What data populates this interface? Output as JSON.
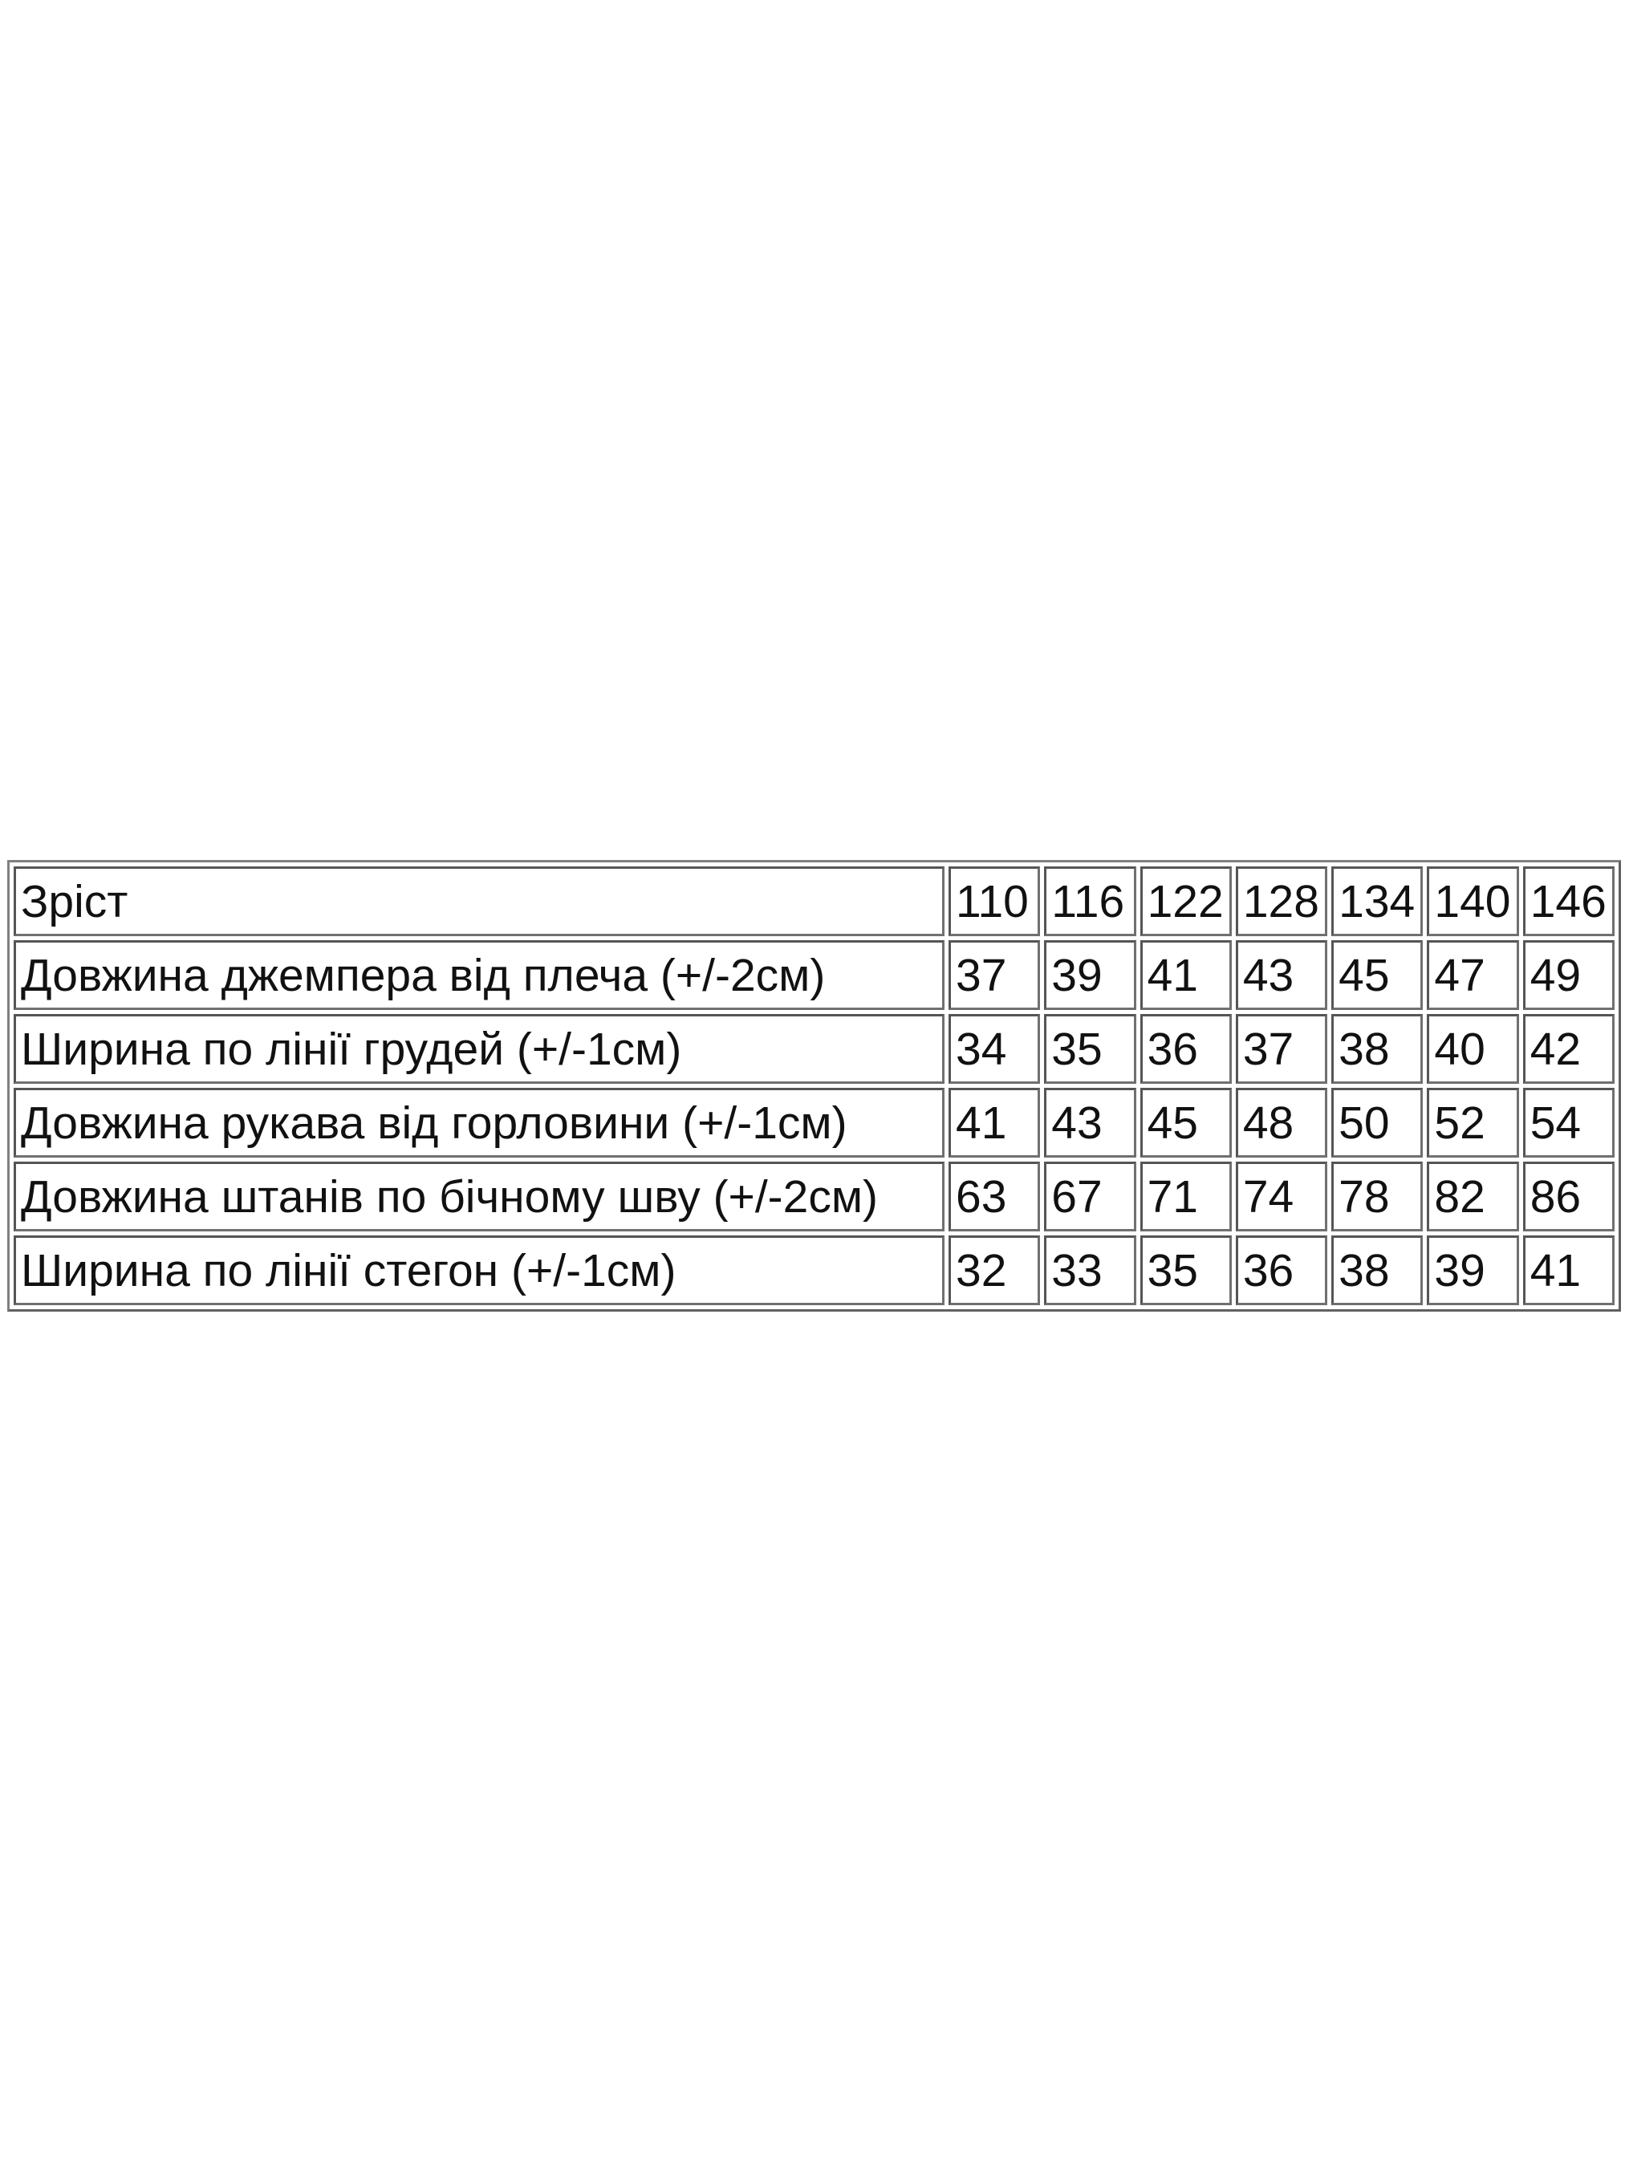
{
  "table": {
    "header": {
      "label": "Зріст",
      "sizes": [
        "110",
        "116",
        "122",
        "128",
        "134",
        "140",
        "146"
      ]
    },
    "rows": [
      {
        "label": "Довжина джемпера від плеча (+/-2см)",
        "values": [
          "37",
          "39",
          "41",
          "43",
          "45",
          "47",
          "49"
        ]
      },
      {
        "label": "Ширина по лінії грудей (+/-1см)",
        "values": [
          "34",
          "35",
          "36",
          "37",
          "38",
          "40",
          "42"
        ]
      },
      {
        "label": "Довжина рукава від горловини (+/-1см)",
        "values": [
          "41",
          "43",
          "45",
          "48",
          "50",
          "52",
          "54"
        ]
      },
      {
        "label": "Довжина штанів по бічному шву (+/-2см)",
        "values": [
          "63",
          "67",
          "71",
          "74",
          "78",
          "82",
          "86"
        ]
      },
      {
        "label": "Ширина по лінії стегон (+/-1см)",
        "values": [
          "32",
          "33",
          "35",
          "36",
          "38",
          "39",
          "41"
        ]
      }
    ]
  }
}
